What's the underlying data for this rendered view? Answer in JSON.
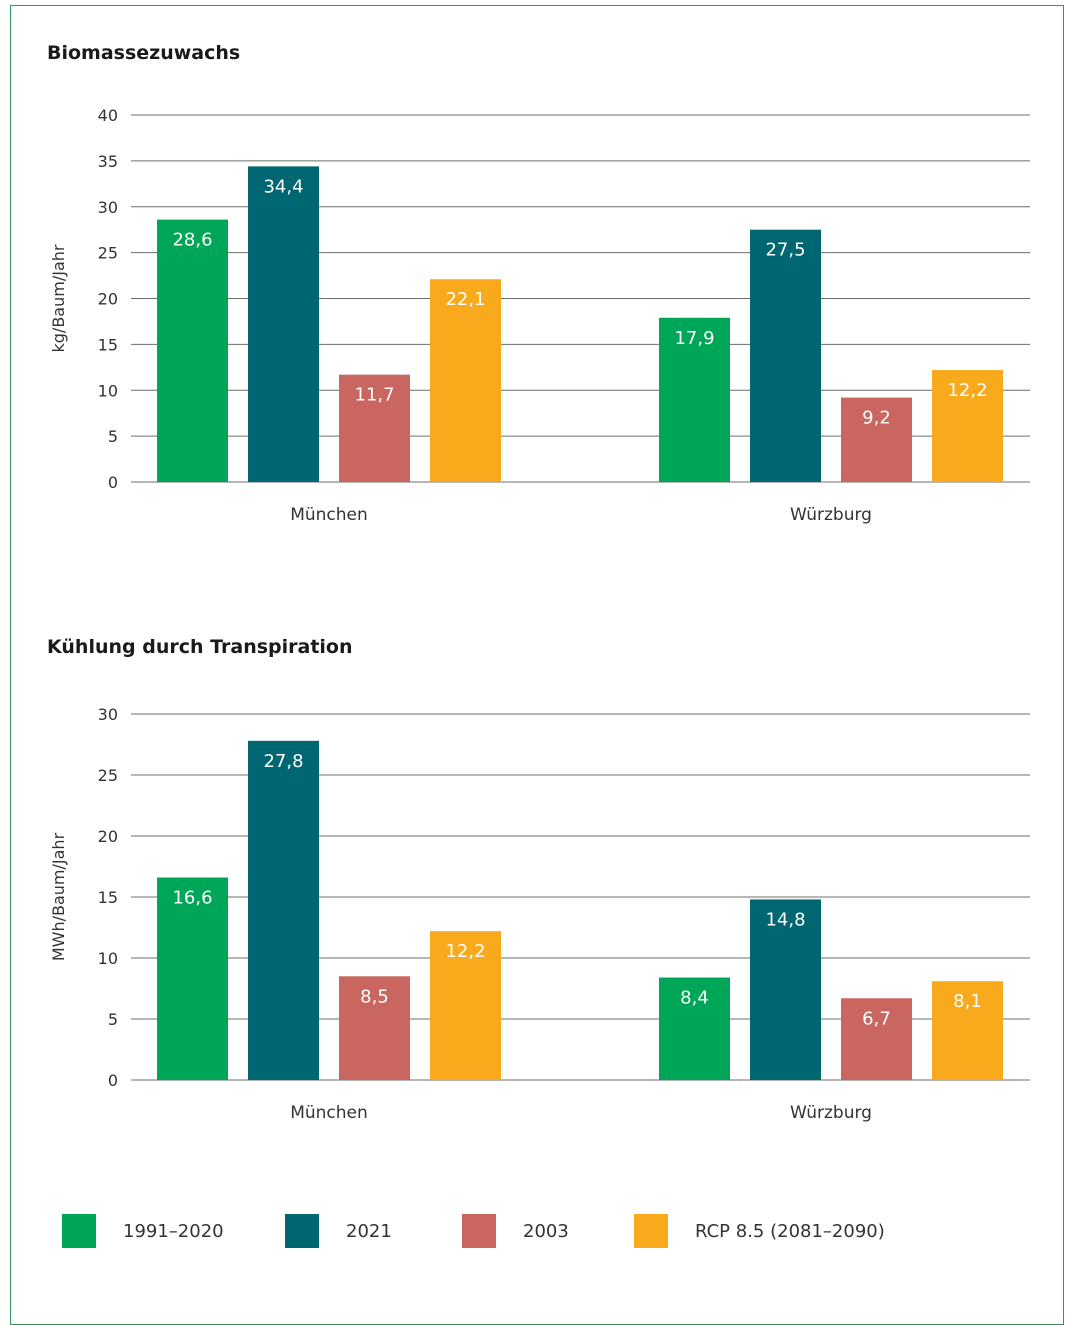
{
  "colors": {
    "frame": "#2f9a5f",
    "grid": "#6d6d6d",
    "text": "#333333"
  },
  "legend": [
    {
      "label": "1991–2020",
      "color": "#00a657"
    },
    {
      "label": "2021",
      "color": "#006671"
    },
    {
      "label": "2003",
      "color": "#c96660"
    },
    {
      "label": "RCP 8.5 (2081–2090)",
      "color": "#f8aa1c"
    }
  ],
  "chart_data": [
    {
      "type": "bar",
      "title": "Biomassezuwachs",
      "ylabel": "kg/Baum/Jahr",
      "xlabel": "",
      "ylim": [
        0,
        40
      ],
      "yticks": [
        0,
        5,
        10,
        15,
        20,
        25,
        30,
        35,
        40
      ],
      "grid": true,
      "categories": [
        "München",
        "Würzburg"
      ],
      "series": [
        {
          "name": "1991–2020",
          "color": "#00a657",
          "values": [
            28.6,
            17.9
          ],
          "labels": [
            "28,6",
            "17,9"
          ]
        },
        {
          "name": "2021",
          "color": "#006671",
          "values": [
            34.4,
            27.5
          ],
          "labels": [
            "34,4",
            "27,5"
          ]
        },
        {
          "name": "2003",
          "color": "#c96660",
          "values": [
            11.7,
            9.2
          ],
          "labels": [
            "11,7",
            "9,2"
          ]
        },
        {
          "name": "RCP 8.5 (2081–2090)",
          "color": "#f8aa1c",
          "values": [
            22.1,
            12.2
          ],
          "labels": [
            "22,1",
            "12,2"
          ]
        }
      ]
    },
    {
      "type": "bar",
      "title": "Kühlung durch Transpiration",
      "ylabel": "MWh/Baum/Jahr",
      "xlabel": "",
      "ylim": [
        0,
        30
      ],
      "yticks": [
        0,
        5,
        10,
        15,
        20,
        25,
        30
      ],
      "grid": true,
      "categories": [
        "München",
        "Würzburg"
      ],
      "series": [
        {
          "name": "1991–2020",
          "color": "#00a657",
          "values": [
            16.6,
            8.4
          ],
          "labels": [
            "16,6",
            "8,4"
          ]
        },
        {
          "name": "2021",
          "color": "#006671",
          "values": [
            27.8,
            14.8
          ],
          "labels": [
            "27,8",
            "14,8"
          ]
        },
        {
          "name": "2003",
          "color": "#c96660",
          "values": [
            8.5,
            6.7
          ],
          "labels": [
            "8,5",
            "6,7"
          ]
        },
        {
          "name": "RCP 8.5 (2081–2090)",
          "color": "#f8aa1c",
          "values": [
            12.2,
            8.1
          ],
          "labels": [
            "12,2",
            "8,1"
          ]
        }
      ]
    }
  ]
}
